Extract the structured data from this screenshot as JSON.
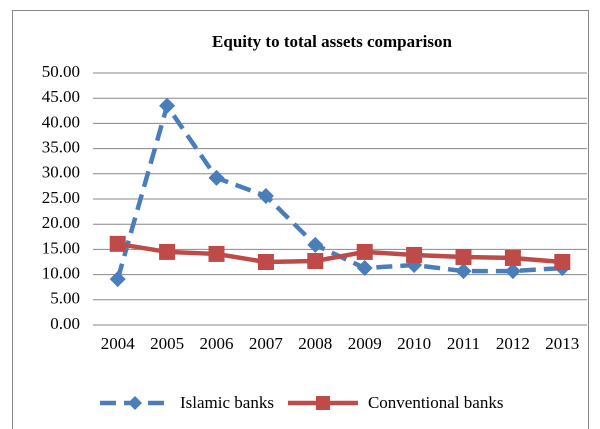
{
  "chart_data": {
    "type": "line",
    "title": "Equity to total assets comparison",
    "categories": [
      "2004",
      "2005",
      "2006",
      "2007",
      "2008",
      "2009",
      "2010",
      "2011",
      "2012",
      "2013"
    ],
    "series": [
      {
        "name": "Islamic banks",
        "color": "#4a7ebb",
        "marker": "diamond",
        "dash": true,
        "values": [
          9.1,
          43.5,
          29.2,
          25.6,
          15.9,
          11.3,
          11.9,
          10.7,
          10.7,
          11.3
        ]
      },
      {
        "name": "Conventional banks",
        "color": "#be4b48",
        "marker": "square",
        "dash": false,
        "values": [
          16.1,
          14.5,
          14.1,
          12.5,
          12.7,
          14.5,
          13.9,
          13.5,
          13.3,
          12.5
        ]
      }
    ],
    "ylim": [
      0,
      50
    ],
    "yticks": [
      {
        "value": 0,
        "label": "0.00"
      },
      {
        "value": 5,
        "label": "5.00"
      },
      {
        "value": 10,
        "label": "10.00"
      },
      {
        "value": 15,
        "label": "15.00"
      },
      {
        "value": 20,
        "label": "20.00"
      },
      {
        "value": 25,
        "label": "25.00"
      },
      {
        "value": 30,
        "label": "30.00"
      },
      {
        "value": 35,
        "label": "35.00"
      },
      {
        "value": 40,
        "label": "40.00"
      },
      {
        "value": 45,
        "label": "45.00"
      },
      {
        "value": 50,
        "label": "50.00"
      }
    ],
    "grid": true,
    "legend": "bottom"
  }
}
